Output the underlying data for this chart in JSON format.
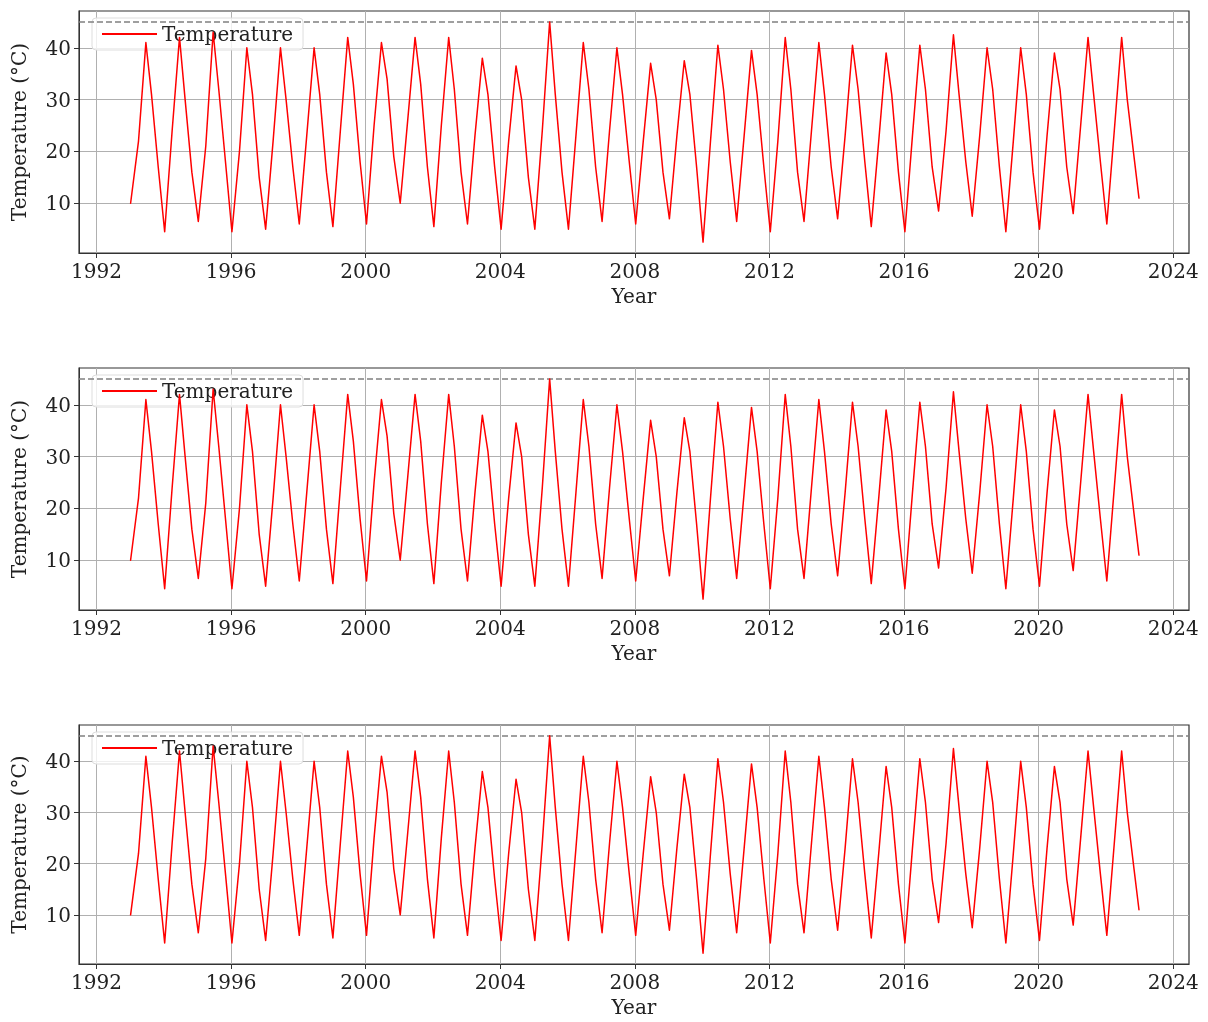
{
  "chart_data": [
    {
      "type": "line",
      "xlabel": "Year",
      "ylabel": "Temperature (°C)",
      "xlim": [
        "1991-06-25",
        "2024-06-20"
      ],
      "ylim": [
        0.4,
        47.1
      ],
      "xticks": [
        "1992",
        "1996",
        "2000",
        "2004",
        "2008",
        "2012",
        "2016",
        "2020",
        "2024"
      ],
      "yticks": [
        10,
        20,
        30,
        40
      ],
      "grid": true,
      "legend": "top left",
      "marker": "none",
      "line_style": "solid",
      "ref_lines": [
        {
          "axis": "y",
          "value": 45,
          "color": "#808080",
          "line_style": "dashed"
        }
      ],
      "x": [
        "1993-01-05",
        "1993-04-01",
        "1993-06-20",
        "1993-08-20",
        "1993-11-01",
        "1994-01-10",
        "1994-04-01",
        "1994-06-20",
        "1994-08-20",
        "1994-11-01",
        "1995-01-10",
        "1995-04-01",
        "1995-06-20",
        "1995-08-20",
        "1995-11-01",
        "1996-01-10",
        "1996-04-01",
        "1996-06-20",
        "1996-08-20",
        "1996-11-01",
        "1997-01-10",
        "1997-04-01",
        "1997-06-20",
        "1997-08-20",
        "1997-11-01",
        "1998-01-10",
        "1998-04-01",
        "1998-06-20",
        "1998-08-20",
        "1998-11-01",
        "1999-01-10",
        "1999-04-01",
        "1999-06-20",
        "1999-08-20",
        "1999-11-01",
        "2000-01-10",
        "2000-04-01",
        "2000-06-20",
        "2000-08-20",
        "2000-11-01",
        "2001-01-10",
        "2001-04-01",
        "2001-06-20",
        "2001-08-20",
        "2001-11-01",
        "2002-01-10",
        "2002-04-01",
        "2002-06-20",
        "2002-08-20",
        "2002-11-01",
        "2003-01-10",
        "2003-04-01",
        "2003-06-20",
        "2003-08-20",
        "2003-11-01",
        "2004-01-10",
        "2004-04-01",
        "2004-06-20",
        "2004-08-20",
        "2004-11-01",
        "2005-01-10",
        "2005-04-01",
        "2005-06-20",
        "2005-08-20",
        "2005-11-01",
        "2006-01-10",
        "2006-04-01",
        "2006-06-20",
        "2006-08-20",
        "2006-11-01",
        "2007-01-10",
        "2007-04-01",
        "2007-06-20",
        "2007-08-20",
        "2007-11-01",
        "2008-01-10",
        "2008-04-01",
        "2008-06-20",
        "2008-08-20",
        "2008-11-01",
        "2009-01-10",
        "2009-04-01",
        "2009-06-20",
        "2009-08-20",
        "2009-11-01",
        "2010-01-10",
        "2010-04-01",
        "2010-06-20",
        "2010-08-20",
        "2010-11-01",
        "2011-01-10",
        "2011-04-01",
        "2011-06-20",
        "2011-08-20",
        "2011-11-01",
        "2012-01-10",
        "2012-04-01",
        "2012-06-20",
        "2012-08-20",
        "2012-11-01",
        "2013-01-10",
        "2013-04-01",
        "2013-06-20",
        "2013-08-20",
        "2013-11-01",
        "2014-01-10",
        "2014-04-01",
        "2014-06-20",
        "2014-08-20",
        "2014-11-01",
        "2015-01-10",
        "2015-04-01",
        "2015-06-20",
        "2015-08-20",
        "2015-11-01",
        "2016-01-10",
        "2016-04-01",
        "2016-06-20",
        "2016-08-20",
        "2016-11-01",
        "2017-01-10",
        "2017-04-01",
        "2017-06-20",
        "2017-08-20",
        "2017-11-01",
        "2018-01-10",
        "2018-04-01",
        "2018-06-20",
        "2018-08-20",
        "2018-11-01",
        "2019-01-10",
        "2019-04-01",
        "2019-06-20",
        "2019-08-20",
        "2019-11-01",
        "2020-01-10",
        "2020-04-01",
        "2020-06-20",
        "2020-08-20",
        "2020-11-01",
        "2021-01-10",
        "2021-04-01",
        "2021-06-20",
        "2021-08-20",
        "2021-11-01",
        "2022-01-10",
        "2022-04-01",
        "2022-06-20",
        "2022-08-20",
        "2022-11-01",
        "2022-12-25"
      ],
      "series": [
        {
          "name": "Temperature",
          "color": "#ff0000",
          "values": [
            10,
            22,
            41,
            31,
            17,
            4.5,
            24,
            42,
            30,
            16,
            6.5,
            21,
            43,
            32,
            18,
            4.5,
            20,
            40,
            31,
            15,
            5,
            22,
            40,
            30,
            17,
            6,
            23,
            40,
            31,
            16,
            5.5,
            24,
            42,
            33,
            18,
            6,
            25,
            41,
            34,
            19,
            10,
            26,
            42,
            33,
            17,
            5.5,
            25,
            42,
            32,
            16,
            6,
            23,
            38,
            31,
            17,
            5,
            22,
            36.5,
            30,
            15,
            5,
            24,
            45,
            31,
            16,
            5,
            23,
            41,
            32,
            17,
            6.5,
            24,
            40,
            31,
            18,
            6,
            22,
            37,
            30,
            16,
            7,
            23,
            37.5,
            31,
            17,
            2.5,
            22,
            40.5,
            32,
            18,
            6.5,
            23,
            39.5,
            31,
            17,
            4.5,
            22,
            42,
            32,
            16,
            6.5,
            24,
            41,
            31,
            17,
            7,
            23,
            40.5,
            32,
            18,
            5.5,
            22,
            39,
            31,
            16,
            4.5,
            23,
            40.5,
            32,
            17,
            8.5,
            24,
            42.5,
            31,
            18,
            7.5,
            23,
            40,
            32,
            17,
            4.5,
            22,
            40,
            31,
            16,
            5,
            23,
            39,
            32,
            17,
            8,
            25,
            42,
            31,
            18,
            6,
            24,
            42,
            30,
            19,
            11
          ]
        }
      ]
    },
    {
      "type": "line",
      "xlabel": "Year",
      "ylabel": "Temperature (°C)",
      "xlim": [
        "1991-06-25",
        "2024-06-20"
      ],
      "ylim": [
        0.4,
        47.1
      ],
      "xticks": [
        "1992",
        "1996",
        "2000",
        "2004",
        "2008",
        "2012",
        "2016",
        "2020",
        "2024"
      ],
      "yticks": [
        10,
        20,
        30,
        40
      ],
      "grid": true,
      "legend": "top left",
      "marker": "none",
      "line_style": "solid",
      "ref_lines": [
        {
          "axis": "y",
          "value": 45,
          "color": "#808080",
          "line_style": "dashed"
        }
      ],
      "x": [
        "1993-01-05",
        "1993-04-01",
        "1993-06-20",
        "1993-08-20",
        "1993-11-01",
        "1994-01-10",
        "1994-04-01",
        "1994-06-20",
        "1994-08-20",
        "1994-11-01",
        "1995-01-10",
        "1995-04-01",
        "1995-06-20",
        "1995-08-20",
        "1995-11-01",
        "1996-01-10",
        "1996-04-01",
        "1996-06-20",
        "1996-08-20",
        "1996-11-01",
        "1997-01-10",
        "1997-04-01",
        "1997-06-20",
        "1997-08-20",
        "1997-11-01",
        "1998-01-10",
        "1998-04-01",
        "1998-06-20",
        "1998-08-20",
        "1998-11-01",
        "1999-01-10",
        "1999-04-01",
        "1999-06-20",
        "1999-08-20",
        "1999-11-01",
        "2000-01-10",
        "2000-04-01",
        "2000-06-20",
        "2000-08-20",
        "2000-11-01",
        "2001-01-10",
        "2001-04-01",
        "2001-06-20",
        "2001-08-20",
        "2001-11-01",
        "2002-01-10",
        "2002-04-01",
        "2002-06-20",
        "2002-08-20",
        "2002-11-01",
        "2003-01-10",
        "2003-04-01",
        "2003-06-20",
        "2003-08-20",
        "2003-11-01",
        "2004-01-10",
        "2004-04-01",
        "2004-06-20",
        "2004-08-20",
        "2004-11-01",
        "2005-01-10",
        "2005-04-01",
        "2005-06-20",
        "2005-08-20",
        "2005-11-01",
        "2006-01-10",
        "2006-04-01",
        "2006-06-20",
        "2006-08-20",
        "2006-11-01",
        "2007-01-10",
        "2007-04-01",
        "2007-06-20",
        "2007-08-20",
        "2007-11-01",
        "2008-01-10",
        "2008-04-01",
        "2008-06-20",
        "2008-08-20",
        "2008-11-01",
        "2009-01-10",
        "2009-04-01",
        "2009-06-20",
        "2009-08-20",
        "2009-11-01",
        "2010-01-10",
        "2010-04-01",
        "2010-06-20",
        "2010-08-20",
        "2010-11-01",
        "2011-01-10",
        "2011-04-01",
        "2011-06-20",
        "2011-08-20",
        "2011-11-01",
        "2012-01-10",
        "2012-04-01",
        "2012-06-20",
        "2012-08-20",
        "2012-11-01",
        "2013-01-10",
        "2013-04-01",
        "2013-06-20",
        "2013-08-20",
        "2013-11-01",
        "2014-01-10",
        "2014-04-01",
        "2014-06-20",
        "2014-08-20",
        "2014-11-01",
        "2015-01-10",
        "2015-04-01",
        "2015-06-20",
        "2015-08-20",
        "2015-11-01",
        "2016-01-10",
        "2016-04-01",
        "2016-06-20",
        "2016-08-20",
        "2016-11-01",
        "2017-01-10",
        "2017-04-01",
        "2017-06-20",
        "2017-08-20",
        "2017-11-01",
        "2018-01-10",
        "2018-04-01",
        "2018-06-20",
        "2018-08-20",
        "2018-11-01",
        "2019-01-10",
        "2019-04-01",
        "2019-06-20",
        "2019-08-20",
        "2019-11-01",
        "2020-01-10",
        "2020-04-01",
        "2020-06-20",
        "2020-08-20",
        "2020-11-01",
        "2021-01-10",
        "2021-04-01",
        "2021-06-20",
        "2021-08-20",
        "2021-11-01",
        "2022-01-10",
        "2022-04-01",
        "2022-06-20",
        "2022-08-20",
        "2022-11-01",
        "2022-12-25"
      ],
      "series": [
        {
          "name": "Temperature",
          "color": "#ff0000",
          "values": [
            10,
            22,
            41,
            31,
            17,
            4.5,
            24,
            42,
            30,
            16,
            6.5,
            21,
            43,
            32,
            18,
            4.5,
            20,
            40,
            31,
            15,
            5,
            22,
            40,
            30,
            17,
            6,
            23,
            40,
            31,
            16,
            5.5,
            24,
            42,
            33,
            18,
            6,
            25,
            41,
            34,
            19,
            10,
            26,
            42,
            33,
            17,
            5.5,
            25,
            42,
            32,
            16,
            6,
            23,
            38,
            31,
            17,
            5,
            22,
            36.5,
            30,
            15,
            5,
            24,
            45,
            31,
            16,
            5,
            23,
            41,
            32,
            17,
            6.5,
            24,
            40,
            31,
            18,
            6,
            22,
            37,
            30,
            16,
            7,
            23,
            37.5,
            31,
            17,
            2.5,
            22,
            40.5,
            32,
            18,
            6.5,
            23,
            39.5,
            31,
            17,
            4.5,
            22,
            42,
            32,
            16,
            6.5,
            24,
            41,
            31,
            17,
            7,
            23,
            40.5,
            32,
            18,
            5.5,
            22,
            39,
            31,
            16,
            4.5,
            23,
            40.5,
            32,
            17,
            8.5,
            24,
            42.5,
            31,
            18,
            7.5,
            23,
            40,
            32,
            17,
            4.5,
            22,
            40,
            31,
            16,
            5,
            23,
            39,
            32,
            17,
            8,
            25,
            42,
            31,
            18,
            6,
            24,
            42,
            30,
            19,
            11
          ]
        }
      ]
    },
    {
      "type": "line",
      "xlabel": "Year",
      "ylabel": "Temperature (°C)",
      "xlim": [
        "1991-06-25",
        "2024-06-20"
      ],
      "ylim": [
        0.4,
        47.1
      ],
      "xticks": [
        "1992",
        "1996",
        "2000",
        "2004",
        "2008",
        "2012",
        "2016",
        "2020",
        "2024"
      ],
      "yticks": [
        10,
        20,
        30,
        40
      ],
      "grid": true,
      "legend": "top left",
      "marker": "none",
      "line_style": "solid",
      "ref_lines": [
        {
          "axis": "y",
          "value": 45,
          "color": "#808080",
          "line_style": "dashed"
        }
      ],
      "x": [
        "1993-01-05",
        "1993-04-01",
        "1993-06-20",
        "1993-08-20",
        "1993-11-01",
        "1994-01-10",
        "1994-04-01",
        "1994-06-20",
        "1994-08-20",
        "1994-11-01",
        "1995-01-10",
        "1995-04-01",
        "1995-06-20",
        "1995-08-20",
        "1995-11-01",
        "1996-01-10",
        "1996-04-01",
        "1996-06-20",
        "1996-08-20",
        "1996-11-01",
        "1997-01-10",
        "1997-04-01",
        "1997-06-20",
        "1997-08-20",
        "1997-11-01",
        "1998-01-10",
        "1998-04-01",
        "1998-06-20",
        "1998-08-20",
        "1998-11-01",
        "1999-01-10",
        "1999-04-01",
        "1999-06-20",
        "1999-08-20",
        "1999-11-01",
        "2000-01-10",
        "2000-04-01",
        "2000-06-20",
        "2000-08-20",
        "2000-11-01",
        "2001-01-10",
        "2001-04-01",
        "2001-06-20",
        "2001-08-20",
        "2001-11-01",
        "2002-01-10",
        "2002-04-01",
        "2002-06-20",
        "2002-08-20",
        "2002-11-01",
        "2003-01-10",
        "2003-04-01",
        "2003-06-20",
        "2003-08-20",
        "2003-11-01",
        "2004-01-10",
        "2004-04-01",
        "2004-06-20",
        "2004-08-20",
        "2004-11-01",
        "2005-01-10",
        "2005-04-01",
        "2005-06-20",
        "2005-08-20",
        "2005-11-01",
        "2006-01-10",
        "2006-04-01",
        "2006-06-20",
        "2006-08-20",
        "2006-11-01",
        "2007-01-10",
        "2007-04-01",
        "2007-06-20",
        "2007-08-20",
        "2007-11-01",
        "2008-01-10",
        "2008-04-01",
        "2008-06-20",
        "2008-08-20",
        "2008-11-01",
        "2009-01-10",
        "2009-04-01",
        "2009-06-20",
        "2009-08-20",
        "2009-11-01",
        "2010-01-10",
        "2010-04-01",
        "2010-06-20",
        "2010-08-20",
        "2010-11-01",
        "2011-01-10",
        "2011-04-01",
        "2011-06-20",
        "2011-08-20",
        "2011-11-01",
        "2012-01-10",
        "2012-04-01",
        "2012-06-20",
        "2012-08-20",
        "2012-11-01",
        "2013-01-10",
        "2013-04-01",
        "2013-06-20",
        "2013-08-20",
        "2013-11-01",
        "2014-01-10",
        "2014-04-01",
        "2014-06-20",
        "2014-08-20",
        "2014-11-01",
        "2015-01-10",
        "2015-04-01",
        "2015-06-20",
        "2015-08-20",
        "2015-11-01",
        "2016-01-10",
        "2016-04-01",
        "2016-06-20",
        "2016-08-20",
        "2016-11-01",
        "2017-01-10",
        "2017-04-01",
        "2017-06-20",
        "2017-08-20",
        "2017-11-01",
        "2018-01-10",
        "2018-04-01",
        "2018-06-20",
        "2018-08-20",
        "2018-11-01",
        "2019-01-10",
        "2019-04-01",
        "2019-06-20",
        "2019-08-20",
        "2019-11-01",
        "2020-01-10",
        "2020-04-01",
        "2020-06-20",
        "2020-08-20",
        "2020-11-01",
        "2021-01-10",
        "2021-04-01",
        "2021-06-20",
        "2021-08-20",
        "2021-11-01",
        "2022-01-10",
        "2022-04-01",
        "2022-06-20",
        "2022-08-20",
        "2022-11-01",
        "2022-12-25"
      ],
      "series": [
        {
          "name": "Temperature",
          "color": "#ff0000",
          "values": [
            10,
            22,
            41,
            31,
            17,
            4.5,
            24,
            42,
            30,
            16,
            6.5,
            21,
            43,
            32,
            18,
            4.5,
            20,
            40,
            31,
            15,
            5,
            22,
            40,
            30,
            17,
            6,
            23,
            40,
            31,
            16,
            5.5,
            24,
            42,
            33,
            18,
            6,
            25,
            41,
            34,
            19,
            10,
            26,
            42,
            33,
            17,
            5.5,
            25,
            42,
            32,
            16,
            6,
            23,
            38,
            31,
            17,
            5,
            22,
            36.5,
            30,
            15,
            5,
            24,
            45,
            31,
            16,
            5,
            23,
            41,
            32,
            17,
            6.5,
            24,
            40,
            31,
            18,
            6,
            22,
            37,
            30,
            16,
            7,
            23,
            37.5,
            31,
            17,
            2.5,
            22,
            40.5,
            32,
            18,
            6.5,
            23,
            39.5,
            31,
            17,
            4.5,
            22,
            42,
            32,
            16,
            6.5,
            24,
            41,
            31,
            17,
            7,
            23,
            40.5,
            32,
            18,
            5.5,
            22,
            39,
            31,
            16,
            4.5,
            23,
            40.5,
            32,
            17,
            8.5,
            24,
            42.5,
            31,
            18,
            7.5,
            23,
            40,
            32,
            17,
            4.5,
            22,
            40,
            31,
            16,
            5,
            23,
            39,
            32,
            17,
            8,
            25,
            42,
            31,
            18,
            6,
            24,
            42,
            30,
            19,
            11
          ]
        }
      ]
    }
  ]
}
